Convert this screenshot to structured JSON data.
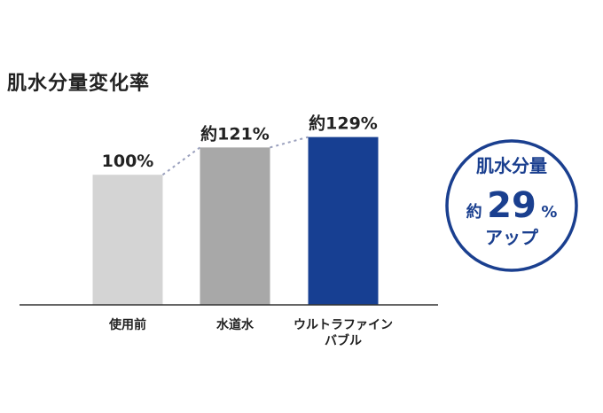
{
  "chart_data": {
    "type": "bar",
    "title": "肌水分量変化率",
    "categories": [
      [
        "使用前"
      ],
      [
        "水道水"
      ],
      [
        "ウルトラファイン",
        "バブル"
      ]
    ],
    "values": [
      100,
      121,
      129
    ],
    "value_labels": [
      "100%",
      "約121%",
      "約129%"
    ],
    "bar_colors": [
      "#d4d4d4",
      "#a8a8a8",
      "#173f92"
    ],
    "connector_color": "#9aa0bd",
    "xlabel": "",
    "ylabel": "",
    "ylim": [
      0,
      150
    ],
    "grid": false,
    "legend": "none"
  },
  "callout": {
    "line1": "肌水分量",
    "prefix": "約",
    "number": "29",
    "unit": "%",
    "line3": "アップ",
    "color": "#1a3f8f"
  }
}
